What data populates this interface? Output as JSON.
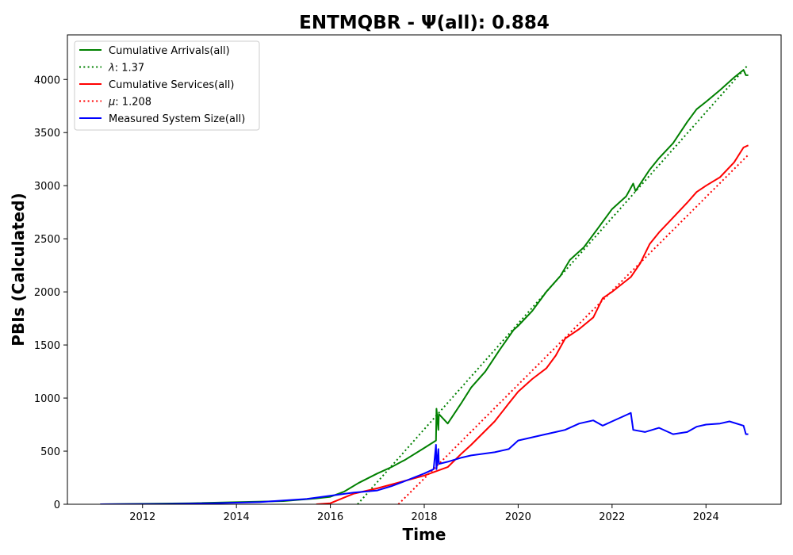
{
  "chart_data": {
    "type": "line",
    "title": "ENTMQBR -  Ψ(all): 0.884",
    "xlabel": "Time",
    "ylabel": "PBIs (Calculated)",
    "xlim": [
      2010.4,
      2025.6
    ],
    "ylim": [
      0,
      4420
    ],
    "xticks": [
      2012,
      2014,
      2016,
      2018,
      2020,
      2022,
      2024
    ],
    "yticks": [
      0,
      500,
      1000,
      1500,
      2000,
      2500,
      3000,
      3500,
      4000
    ],
    "grid": false,
    "legend_position": "top-left",
    "series": [
      {
        "name": "Cumulative Arrivals(all)",
        "color": "#008000",
        "style": "solid",
        "x": [
          2011.1,
          2013.0,
          2015.0,
          2015.7,
          2016.0,
          2016.3,
          2016.6,
          2017.0,
          2017.3,
          2017.6,
          2018.0,
          2018.25,
          2018.26,
          2018.3,
          2018.31,
          2018.5,
          2018.8,
          2019.0,
          2019.3,
          2019.6,
          2019.9,
          2020.0,
          2020.3,
          2020.6,
          2020.9,
          2021.1,
          2021.4,
          2021.7,
          2022.0,
          2022.3,
          2022.45,
          2022.5,
          2022.8,
          2023.0,
          2023.3,
          2023.6,
          2023.8,
          2024.0,
          2024.3,
          2024.6,
          2024.8,
          2024.85,
          2024.9
        ],
        "values": [
          0,
          10,
          30,
          55,
          70,
          120,
          200,
          290,
          350,
          420,
          530,
          600,
          900,
          700,
          850,
          760,
          960,
          1100,
          1250,
          1450,
          1640,
          1680,
          1820,
          2000,
          2150,
          2300,
          2420,
          2600,
          2780,
          2900,
          3020,
          2950,
          3150,
          3260,
          3400,
          3600,
          3720,
          3790,
          3900,
          4020,
          4090,
          4040,
          4040
        ]
      },
      {
        "name": "λ: 1.37",
        "color": "#008000",
        "style": "dotted",
        "x": [
          2016.58,
          2024.9
        ],
        "values": [
          0,
          4140
        ]
      },
      {
        "name": "Cumulative Services(all)",
        "color": "#ff0000",
        "style": "solid",
        "x": [
          2015.7,
          2016.0,
          2016.5,
          2017.0,
          2017.5,
          2018.0,
          2018.5,
          2018.8,
          2019.0,
          2019.5,
          2019.8,
          2020.0,
          2020.3,
          2020.6,
          2020.8,
          2021.0,
          2021.3,
          2021.6,
          2021.8,
          2022.0,
          2022.4,
          2022.6,
          2022.8,
          2023.0,
          2023.3,
          2023.6,
          2023.8,
          2024.0,
          2024.3,
          2024.6,
          2024.8,
          2024.9
        ],
        "values": [
          0,
          10,
          100,
          150,
          210,
          270,
          350,
          480,
          560,
          780,
          950,
          1060,
          1180,
          1280,
          1400,
          1560,
          1650,
          1760,
          1940,
          2000,
          2140,
          2270,
          2450,
          2560,
          2700,
          2840,
          2940,
          3000,
          3080,
          3220,
          3360,
          3380
        ]
      },
      {
        "name": "μ: 1.208",
        "color": "#ff0000",
        "style": "dotted",
        "x": [
          2017.45,
          2024.9
        ],
        "values": [
          0,
          3290
        ]
      },
      {
        "name": "Measured System Size(all)",
        "color": "#0000ff",
        "style": "solid",
        "x": [
          2011.1,
          2012.5,
          2013.5,
          2014.5,
          2015.0,
          2015.5,
          2016.0,
          2016.5,
          2017.0,
          2017.3,
          2017.6,
          2018.0,
          2018.2,
          2018.25,
          2018.26,
          2018.3,
          2018.31,
          2018.5,
          2018.8,
          2019.0,
          2019.5,
          2019.8,
          2020.0,
          2020.5,
          2020.8,
          2021.0,
          2021.3,
          2021.6,
          2021.8,
          2022.0,
          2022.3,
          2022.4,
          2022.45,
          2022.7,
          2023.0,
          2023.3,
          2023.6,
          2023.8,
          2024.0,
          2024.3,
          2024.5,
          2024.8,
          2024.85,
          2024.9
        ],
        "values": [
          0,
          3,
          10,
          20,
          35,
          50,
          80,
          110,
          130,
          170,
          220,
          290,
          330,
          560,
          330,
          520,
          380,
          400,
          440,
          460,
          490,
          520,
          600,
          650,
          680,
          700,
          760,
          790,
          740,
          780,
          840,
          860,
          700,
          680,
          720,
          660,
          680,
          730,
          750,
          760,
          780,
          740,
          660,
          660
        ]
      }
    ]
  }
}
